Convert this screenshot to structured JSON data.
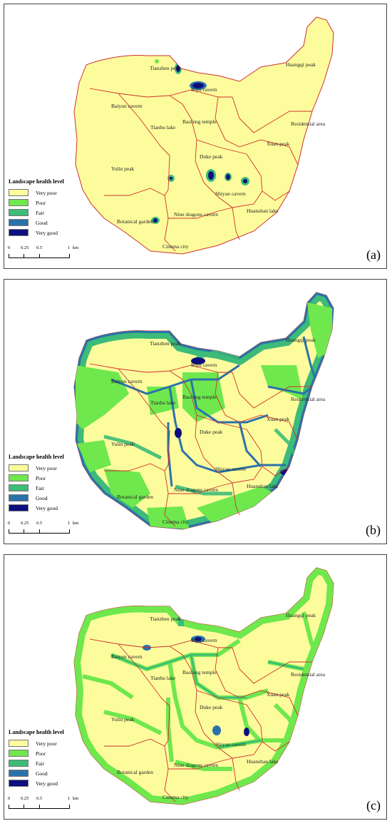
{
  "legend": {
    "title": "Landscape health level",
    "levels": [
      {
        "label": "Very poor",
        "color": "#fdfc9d"
      },
      {
        "label": "Poor",
        "color": "#6ee84d"
      },
      {
        "label": "Fair",
        "color": "#3dbb78"
      },
      {
        "label": "Good",
        "color": "#2a72aa"
      },
      {
        "label": "Very good",
        "color": "#0d0f7c"
      }
    ]
  },
  "scale": {
    "ticks": [
      "0",
      "0.25",
      "0.5",
      "1"
    ],
    "unit": "km"
  },
  "boundary_color": "#d0302b",
  "places": [
    "Tianzhen peak",
    "Huangqi peak",
    "Biyu cavern",
    "Baiyun cavern",
    "Baofeng temple",
    "Tianhu lake",
    "Residential area",
    "Xuan peak",
    "Duke peak",
    "Yulin peak",
    "Shiyan cavern",
    "Huanshan lake",
    "Botanical garden",
    "Nine dragons cavern",
    "Cinema city"
  ],
  "panels": [
    {
      "label": "(a)"
    },
    {
      "label": "(b)"
    },
    {
      "label": "(c)"
    }
  ]
}
